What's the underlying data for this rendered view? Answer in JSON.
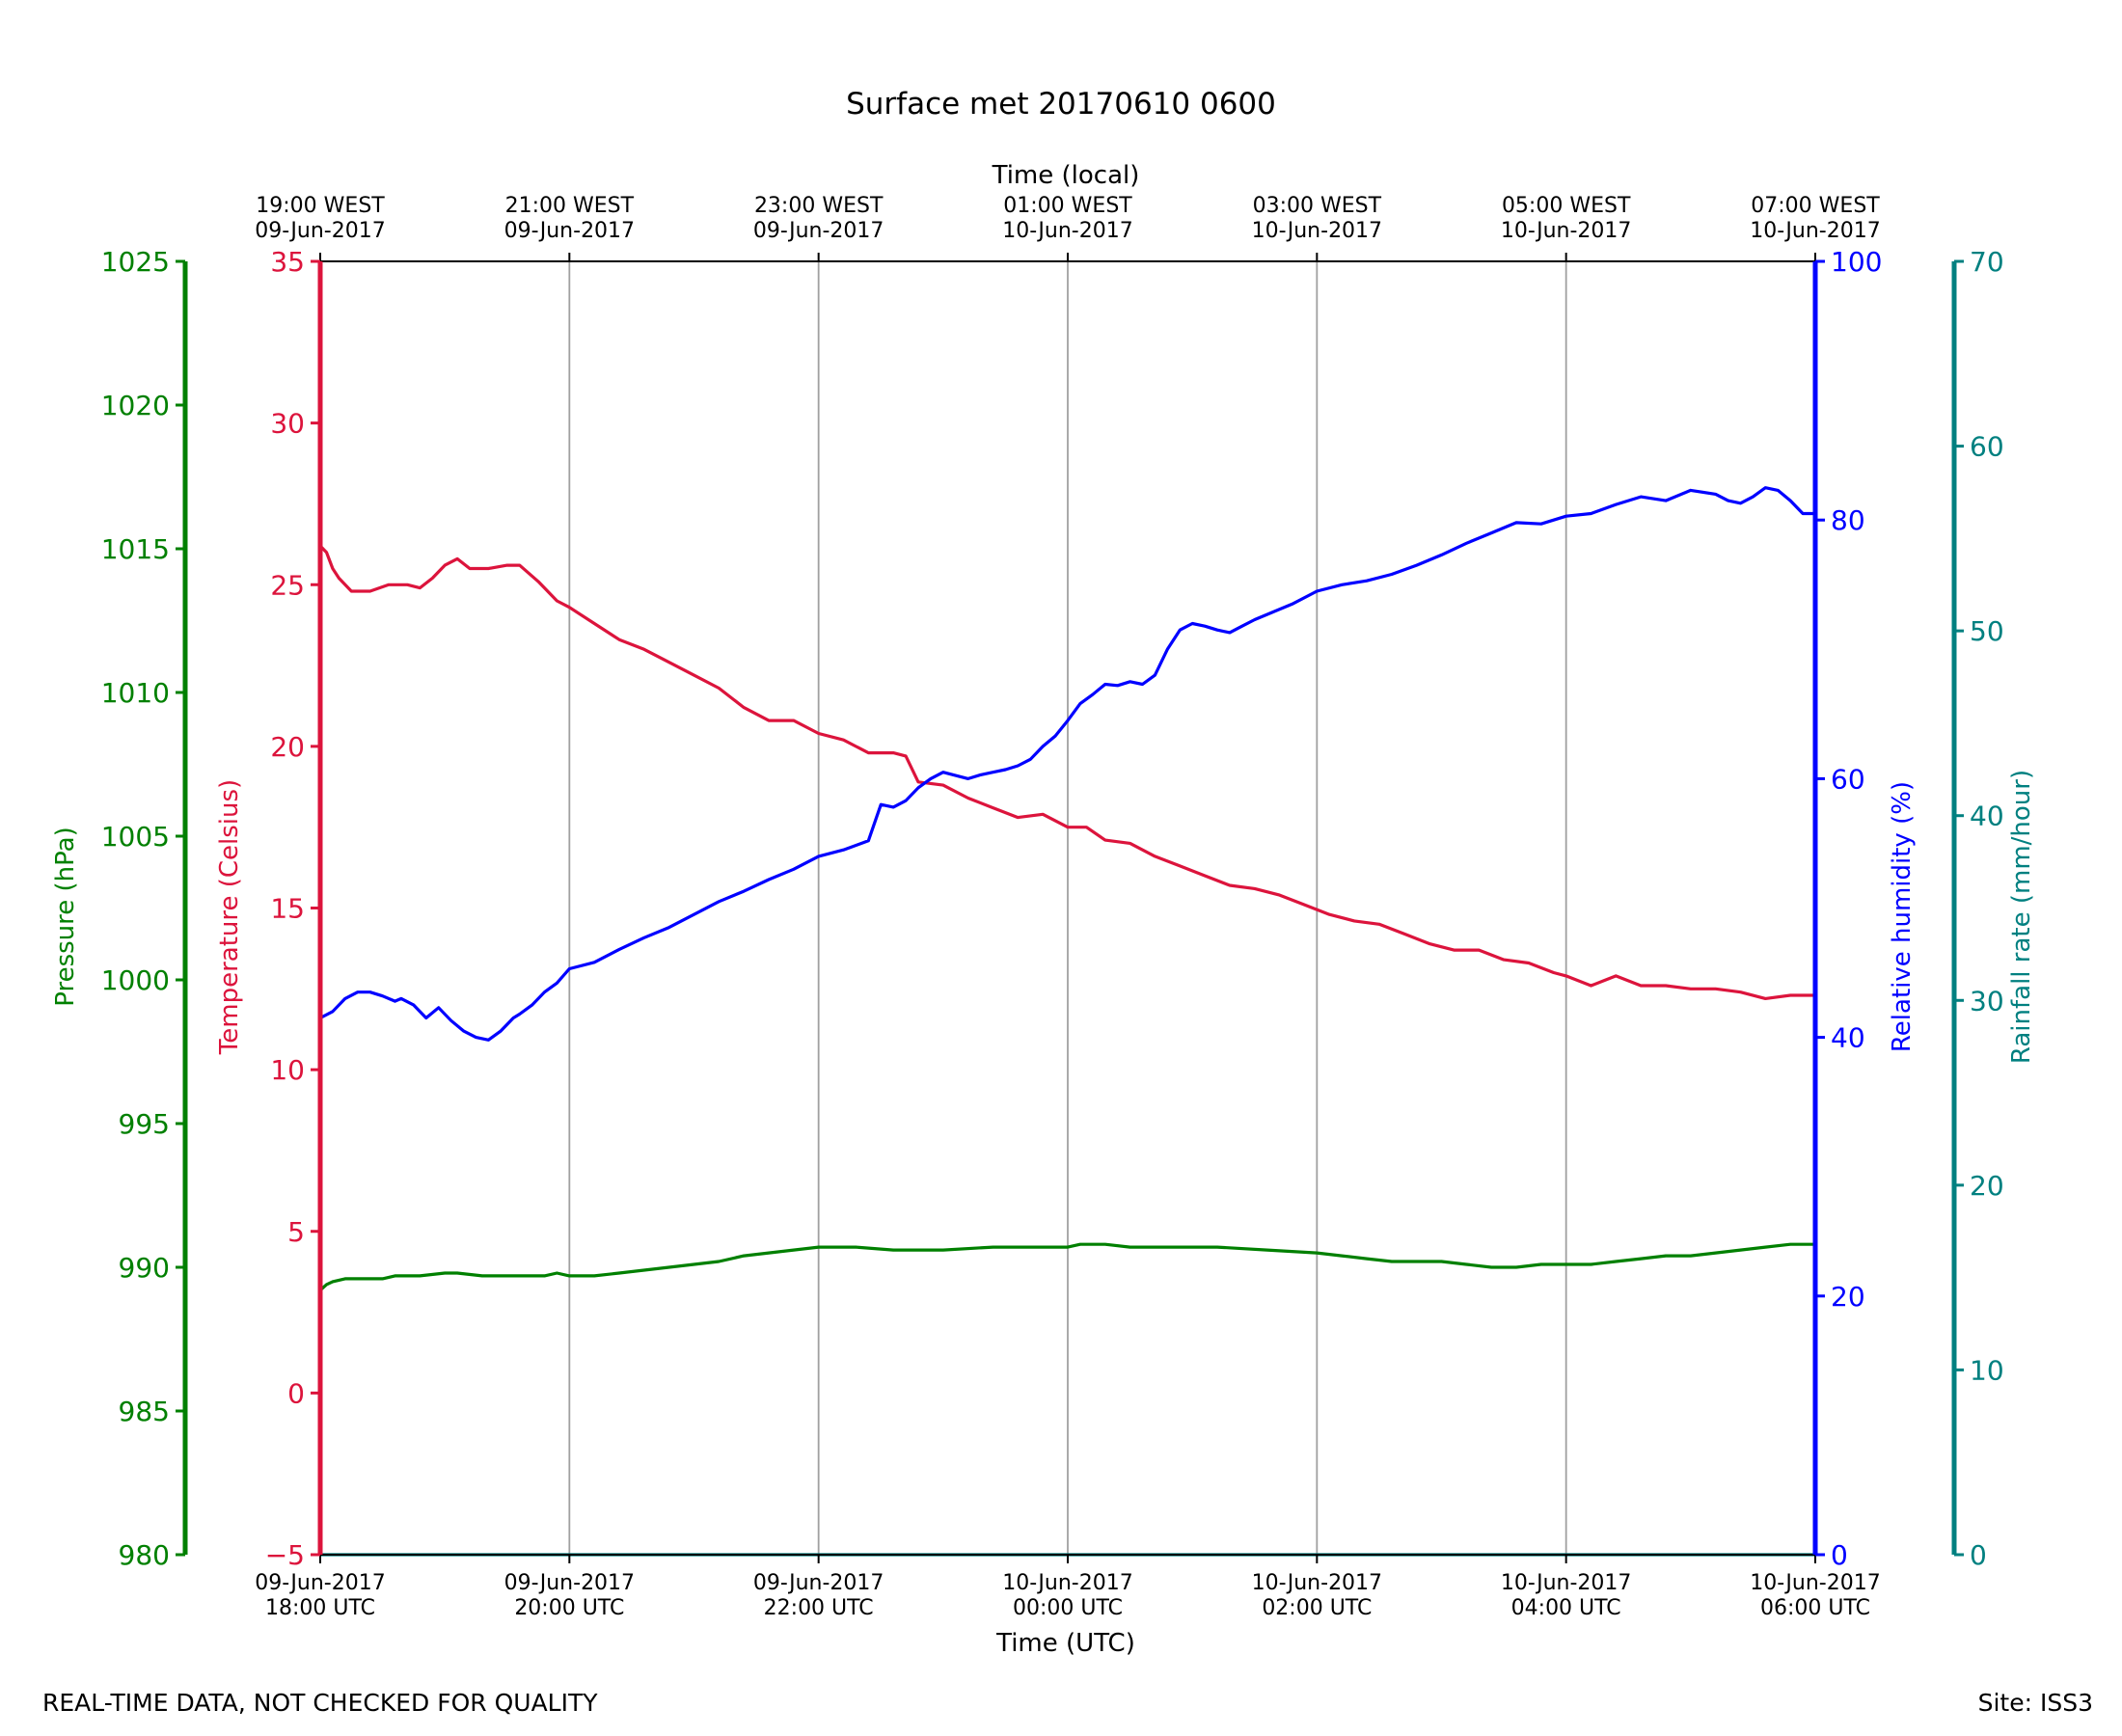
{
  "chart_data": {
    "type": "line",
    "title": "Surface met 20170610 0600",
    "top_axis_label": "Time (local)",
    "bottom_axis_label": "Time (UTC)",
    "top_ticks": [
      {
        "h": 0,
        "line1": "19:00 WEST",
        "line2": "09-Jun-2017"
      },
      {
        "h": 2,
        "line1": "21:00 WEST",
        "line2": "09-Jun-2017"
      },
      {
        "h": 4,
        "line1": "23:00 WEST",
        "line2": "09-Jun-2017"
      },
      {
        "h": 6,
        "line1": "01:00 WEST",
        "line2": "10-Jun-2017"
      },
      {
        "h": 8,
        "line1": "03:00 WEST",
        "line2": "10-Jun-2017"
      },
      {
        "h": 10,
        "line1": "05:00 WEST",
        "line2": "10-Jun-2017"
      },
      {
        "h": 12,
        "line1": "07:00 WEST",
        "line2": "10-Jun-2017"
      }
    ],
    "bottom_ticks": [
      {
        "h": 0,
        "line1": "09-Jun-2017",
        "line2": "18:00 UTC"
      },
      {
        "h": 2,
        "line1": "09-Jun-2017",
        "line2": "20:00 UTC"
      },
      {
        "h": 4,
        "line1": "09-Jun-2017",
        "line2": "22:00 UTC"
      },
      {
        "h": 6,
        "line1": "10-Jun-2017",
        "line2": "00:00 UTC"
      },
      {
        "h": 8,
        "line1": "10-Jun-2017",
        "line2": "02:00 UTC"
      },
      {
        "h": 10,
        "line1": "10-Jun-2017",
        "line2": "04:00 UTC"
      },
      {
        "h": 12,
        "line1": "10-Jun-2017",
        "line2": "06:00 UTC"
      }
    ],
    "x_unit_note": "x values are hours after 09-Jun-2017 18:00 UTC",
    "xlim": [
      0,
      12
    ],
    "grid": "vertical lines at each 2-hour tick",
    "axes": {
      "pressure": {
        "label": "Pressure (hPa)",
        "color": "#008000",
        "ylim": [
          980,
          1025
        ],
        "ticks": [
          980,
          985,
          990,
          995,
          1000,
          1005,
          1010,
          1015,
          1020,
          1025
        ],
        "position": "far-left"
      },
      "temperature": {
        "label": "Temperature (Celsius)",
        "color": "#dc143c",
        "ylim": [
          -5,
          35
        ],
        "ticks": [
          -5,
          0,
          5,
          10,
          15,
          20,
          25,
          30,
          35
        ],
        "position": "left"
      },
      "humidity": {
        "label": "Relative humidity (%)",
        "color": "#0000ff",
        "ylim": [
          0,
          100
        ],
        "ticks": [
          0,
          20,
          40,
          60,
          80,
          100
        ],
        "position": "right"
      },
      "rainfall": {
        "label": "Rainfall rate (mm/hour)",
        "color": "#008080",
        "ylim": [
          0,
          70
        ],
        "ticks": [
          0,
          10,
          20,
          30,
          40,
          50,
          60,
          70
        ],
        "position": "far-right"
      }
    },
    "series": [
      {
        "name": "Temperature (Celsius)",
        "axis": "temperature",
        "color": "#dc143c",
        "x": [
          0,
          0.05,
          0.1,
          0.15,
          0.25,
          0.4,
          0.55,
          0.7,
          0.8,
          0.9,
          1.0,
          1.1,
          1.2,
          1.35,
          1.5,
          1.6,
          1.75,
          1.9,
          2.0,
          2.2,
          2.4,
          2.6,
          2.8,
          3.0,
          3.2,
          3.4,
          3.6,
          3.8,
          4.0,
          4.2,
          4.4,
          4.6,
          4.7,
          4.8,
          5.0,
          5.2,
          5.4,
          5.6,
          5.8,
          6.0,
          6.15,
          6.3,
          6.5,
          6.7,
          6.9,
          7.1,
          7.3,
          7.5,
          7.7,
          7.9,
          8.1,
          8.3,
          8.5,
          8.7,
          8.9,
          9.1,
          9.3,
          9.5,
          9.7,
          9.9,
          10.0,
          10.2,
          10.4,
          10.6,
          10.8,
          11.0,
          11.2,
          11.4,
          11.6,
          11.8,
          12.0
        ],
        "y": [
          26.2,
          26.0,
          25.5,
          25.2,
          24.8,
          24.8,
          25.0,
          25.0,
          24.9,
          25.2,
          25.6,
          25.8,
          25.5,
          25.5,
          25.6,
          25.6,
          25.1,
          24.5,
          24.3,
          23.8,
          23.3,
          23.0,
          22.6,
          22.2,
          21.8,
          21.2,
          20.8,
          20.8,
          20.4,
          20.2,
          19.8,
          19.8,
          19.7,
          18.9,
          18.8,
          18.4,
          18.1,
          17.8,
          17.9,
          17.5,
          17.5,
          17.1,
          17.0,
          16.6,
          16.3,
          16.0,
          15.7,
          15.6,
          15.4,
          15.1,
          14.8,
          14.6,
          14.5,
          14.2,
          13.9,
          13.7,
          13.7,
          13.4,
          13.3,
          13.0,
          12.9,
          12.6,
          12.9,
          12.6,
          12.6,
          12.5,
          12.5,
          12.4,
          12.2,
          12.3,
          12.3
        ]
      },
      {
        "name": "Relative humidity (%)",
        "axis": "humidity",
        "color": "#0000ff",
        "x": [
          0,
          0.1,
          0.2,
          0.3,
          0.4,
          0.5,
          0.6,
          0.65,
          0.75,
          0.85,
          0.95,
          1.05,
          1.15,
          1.25,
          1.35,
          1.45,
          1.55,
          1.6,
          1.7,
          1.8,
          1.9,
          2.0,
          2.2,
          2.4,
          2.6,
          2.8,
          3.0,
          3.2,
          3.4,
          3.6,
          3.8,
          4.0,
          4.2,
          4.4,
          4.5,
          4.6,
          4.7,
          4.8,
          4.9,
          5.0,
          5.2,
          5.3,
          5.4,
          5.5,
          5.6,
          5.7,
          5.8,
          5.9,
          6.0,
          6.1,
          6.2,
          6.3,
          6.4,
          6.5,
          6.6,
          6.7,
          6.8,
          6.9,
          7.0,
          7.1,
          7.2,
          7.3,
          7.4,
          7.5,
          7.6,
          7.8,
          8.0,
          8.2,
          8.4,
          8.6,
          8.8,
          9.0,
          9.2,
          9.4,
          9.6,
          9.8,
          10.0,
          10.2,
          10.4,
          10.6,
          10.8,
          11.0,
          11.2,
          11.3,
          11.4,
          11.5,
          11.6,
          11.7,
          11.8,
          11.9,
          12.0
        ],
        "y": [
          41.5,
          42.0,
          43.0,
          43.5,
          43.5,
          43.2,
          42.8,
          43.0,
          42.5,
          41.5,
          42.3,
          41.3,
          40.5,
          40.0,
          39.8,
          40.5,
          41.5,
          41.8,
          42.5,
          43.5,
          44.2,
          45.3,
          45.8,
          46.8,
          47.7,
          48.5,
          49.5,
          50.5,
          51.3,
          52.2,
          53.0,
          54.0,
          54.5,
          55.2,
          58.0,
          57.8,
          58.3,
          59.3,
          60.0,
          60.5,
          60.0,
          60.3,
          60.5,
          60.7,
          61.0,
          61.5,
          62.5,
          63.3,
          64.5,
          65.8,
          66.5,
          67.3,
          67.2,
          67.5,
          67.3,
          68.0,
          70.0,
          71.5,
          72.0,
          71.8,
          71.5,
          71.3,
          71.8,
          72.3,
          72.7,
          73.5,
          74.5,
          75.0,
          75.3,
          75.8,
          76.5,
          77.3,
          78.2,
          79.0,
          79.8,
          79.7,
          80.3,
          80.5,
          81.2,
          81.8,
          81.5,
          82.3,
          82.0,
          81.5,
          81.3,
          81.8,
          82.5,
          82.3,
          81.5,
          80.5,
          80.5
        ]
      },
      {
        "name": "Pressure (hPa)",
        "axis": "pressure",
        "color": "#008000",
        "x": [
          0,
          0.05,
          0.1,
          0.2,
          0.3,
          0.5,
          0.6,
          0.8,
          1.0,
          1.1,
          1.3,
          1.5,
          1.7,
          1.8,
          1.9,
          2.0,
          2.2,
          2.4,
          2.6,
          2.8,
          3.0,
          3.2,
          3.4,
          3.6,
          3.8,
          4.0,
          4.2,
          4.3,
          4.6,
          5.0,
          5.4,
          5.7,
          6.0,
          6.1,
          6.3,
          6.5,
          6.8,
          7.2,
          7.6,
          8.0,
          8.2,
          8.4,
          8.6,
          8.8,
          9.0,
          9.2,
          9.4,
          9.6,
          9.8,
          10.0,
          10.2,
          10.4,
          10.6,
          10.8,
          11.0,
          11.2,
          11.4,
          11.6,
          11.8,
          12.0
        ],
        "y": [
          989.2,
          989.4,
          989.5,
          989.6,
          989.6,
          989.6,
          989.7,
          989.7,
          989.8,
          989.8,
          989.7,
          989.7,
          989.7,
          989.7,
          989.8,
          989.7,
          989.7,
          989.8,
          989.9,
          990.0,
          990.1,
          990.2,
          990.4,
          990.5,
          990.6,
          990.7,
          990.7,
          990.7,
          990.6,
          990.6,
          990.7,
          990.7,
          990.7,
          990.8,
          990.8,
          990.7,
          990.7,
          990.7,
          990.6,
          990.5,
          990.4,
          990.3,
          990.2,
          990.2,
          990.2,
          990.1,
          990.0,
          990.0,
          990.1,
          990.1,
          990.1,
          990.2,
          990.3,
          990.4,
          990.4,
          990.5,
          990.6,
          990.7,
          990.8,
          990.8
        ]
      },
      {
        "name": "Rainfall rate (mm/hour)",
        "axis": "rainfall",
        "color": "#008080",
        "x": [
          0,
          12
        ],
        "y": [
          0,
          0
        ]
      }
    ],
    "footer_left": "REAL-TIME DATA, NOT CHECKED FOR QUALITY",
    "footer_right": "Site: ISS3"
  }
}
